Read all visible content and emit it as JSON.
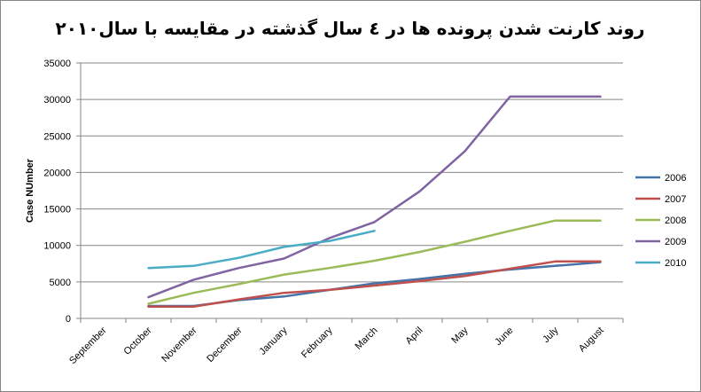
{
  "chart_data": {
    "type": "line",
    "title": "روند کارنت شدن پرونده ها در ٤ سال گذشته در مقایسه با سال٢٠١٠",
    "xlabel": "",
    "ylabel": "Case NUmber",
    "categories": [
      "September",
      "October",
      "November",
      "December",
      "January",
      "February",
      "March",
      "April",
      "May",
      "June",
      "July",
      "August"
    ],
    "ylim": [
      0,
      35000
    ],
    "yticks": [
      0,
      5000,
      10000,
      15000,
      20000,
      25000,
      30000,
      35000
    ],
    "grid": true,
    "legend_position": "right",
    "series": [
      {
        "name": "2006",
        "color": "#4572A7",
        "values": [
          null,
          1700,
          1700,
          2500,
          3000,
          3900,
          4800,
          5400,
          6100,
          6700,
          7200,
          7700
        ]
      },
      {
        "name": "2007",
        "color": "#C0504D",
        "values": [
          null,
          1600,
          1600,
          2600,
          3500,
          3900,
          4500,
          5100,
          5800,
          6800,
          7800,
          7800
        ]
      },
      {
        "name": "2008",
        "color": "#9BBB59",
        "values": [
          null,
          2000,
          3500,
          4700,
          6000,
          6900,
          7900,
          9100,
          10500,
          12000,
          13400,
          13400
        ]
      },
      {
        "name": "2009",
        "color": "#8064A2",
        "values": [
          null,
          2900,
          5300,
          6900,
          8200,
          11000,
          13200,
          17400,
          22900,
          30400,
          30400,
          30400
        ]
      },
      {
        "name": "2010",
        "color": "#4BACC6",
        "values": [
          null,
          6900,
          7200,
          8300,
          9800,
          10600,
          12000,
          null,
          null,
          null,
          null,
          null
        ]
      }
    ]
  }
}
